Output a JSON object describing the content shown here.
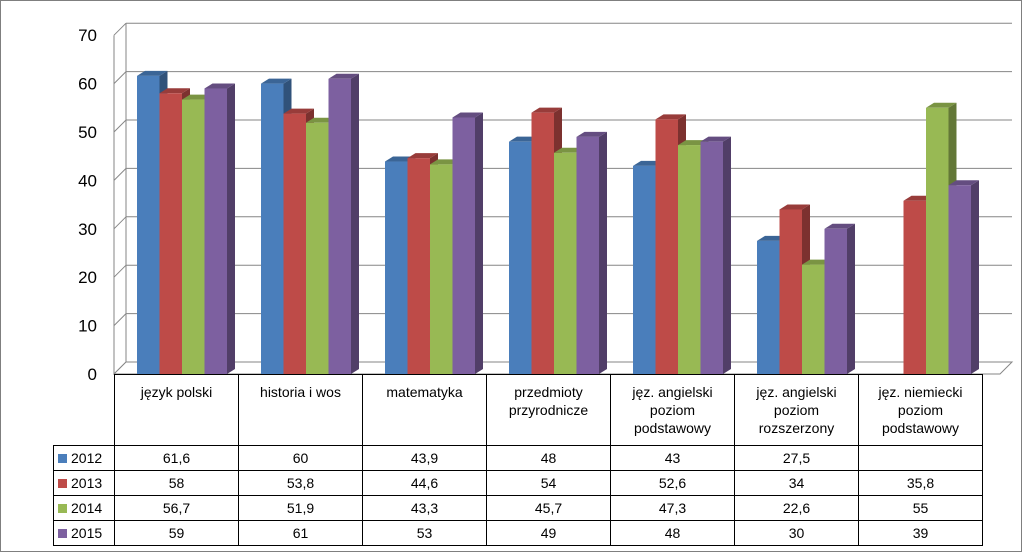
{
  "chart_data": {
    "type": "bar",
    "categories": [
      "język polski",
      "historia i wos",
      "matematyka",
      "przedmioty przyrodnicze",
      "jęz. angielski poziom podstawowy",
      "jęz. angielski poziom rozszerzony",
      "jęz. niemiecki poziom podstawowy"
    ],
    "series": [
      {
        "name": "2012",
        "color": "#4a7ebb",
        "values": [
          61.6,
          60,
          43.9,
          48,
          43,
          27.5,
          null
        ]
      },
      {
        "name": "2013",
        "color": "#be4b48",
        "values": [
          58,
          53.8,
          44.6,
          54,
          52.6,
          34,
          35.8
        ]
      },
      {
        "name": "2014",
        "color": "#98b954",
        "values": [
          56.7,
          51.9,
          43.3,
          45.7,
          47.3,
          22.6,
          55
        ]
      },
      {
        "name": "2015",
        "color": "#7d60a0",
        "values": [
          59,
          61,
          53,
          49,
          48,
          30,
          39
        ]
      }
    ],
    "display_values": [
      [
        "61,6",
        "60",
        "43,9",
        "48",
        "43",
        "27,5",
        ""
      ],
      [
        "58",
        "53,8",
        "44,6",
        "54",
        "52,6",
        "34",
        "35,8"
      ],
      [
        "56,7",
        "51,9",
        "43,3",
        "45,7",
        "47,3",
        "22,6",
        "55"
      ],
      [
        "59",
        "61",
        "53",
        "49",
        "48",
        "30",
        "39"
      ]
    ],
    "y_ticks": [
      "0",
      "10",
      "20",
      "30",
      "40",
      "50",
      "60",
      "70"
    ],
    "ylim": [
      0,
      70
    ],
    "grid": true,
    "legend": "data-table"
  }
}
